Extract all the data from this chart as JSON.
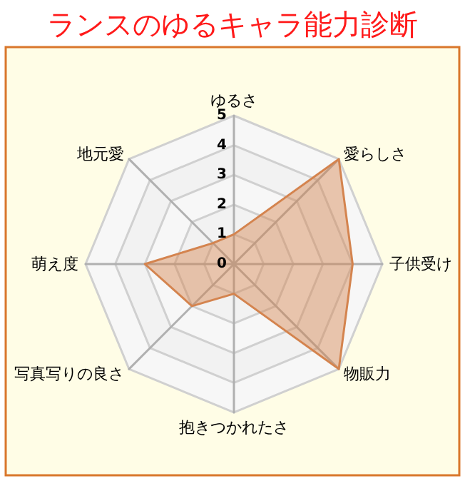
{
  "chart_data": {
    "type": "radar",
    "title": "ランスのゆるキャラ能力診断",
    "categories": [
      "ゆるさ",
      "愛らしさ",
      "子供受け",
      "物販力",
      "抱きつかれたさ",
      "写真写りの良さ",
      "萌え度",
      "地元愛"
    ],
    "series": [
      {
        "color": "#d4844f",
        "values": [
          1,
          5,
          4,
          5,
          1,
          2,
          3,
          1
        ]
      }
    ],
    "ylim": [
      0,
      5
    ],
    "yticks": [
      0,
      1,
      2,
      3,
      4,
      5
    ],
    "grid": true,
    "marker": "none"
  }
}
